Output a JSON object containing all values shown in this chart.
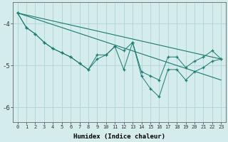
{
  "xlabel": "Humidex (Indice chaleur)",
  "background_color": "#d4ecec",
  "grid_color": "#afd4d4",
  "line_color": "#1a7a6e",
  "xlim": [
    -0.5,
    23.5
  ],
  "ylim": [
    -6.35,
    -3.5
  ],
  "yticks": [
    -6,
    -5,
    -4
  ],
  "xticks": [
    0,
    1,
    2,
    3,
    4,
    5,
    6,
    7,
    8,
    9,
    10,
    11,
    12,
    13,
    14,
    15,
    16,
    17,
    18,
    19,
    20,
    21,
    22,
    23
  ],
  "line1_x": [
    0,
    23
  ],
  "line1_y": [
    -3.75,
    -4.85
  ],
  "line2_x": [
    0,
    23
  ],
  "line2_y": [
    -3.75,
    -5.35
  ],
  "line3_x": [
    0,
    1,
    2,
    3,
    4,
    5,
    6,
    7,
    8,
    9,
    10,
    11,
    12,
    13,
    14,
    15,
    16,
    17,
    18,
    19,
    20,
    21,
    22,
    23
  ],
  "line3_y": [
    -3.75,
    -4.1,
    -4.25,
    -4.45,
    -4.6,
    -4.7,
    -4.8,
    -4.95,
    -5.1,
    -4.75,
    -4.75,
    -4.55,
    -4.65,
    -4.45,
    -5.15,
    -5.25,
    -5.35,
    -4.8,
    -4.8,
    -5.05,
    -4.9,
    -4.8,
    -4.65,
    -4.85
  ],
  "line4_x": [
    0,
    1,
    2,
    3,
    4,
    5,
    6,
    7,
    8,
    9,
    10,
    11,
    12,
    13,
    14,
    15,
    16,
    17,
    18,
    19,
    20,
    21,
    22,
    23
  ],
  "line4_y": [
    -3.75,
    -4.1,
    -4.25,
    -4.45,
    -4.6,
    -4.7,
    -4.8,
    -4.95,
    -5.1,
    -4.85,
    -4.75,
    -4.55,
    -5.1,
    -4.45,
    -5.25,
    -5.55,
    -5.75,
    -5.1,
    -5.1,
    -5.35,
    -5.15,
    -5.05,
    -4.9,
    -4.85
  ]
}
